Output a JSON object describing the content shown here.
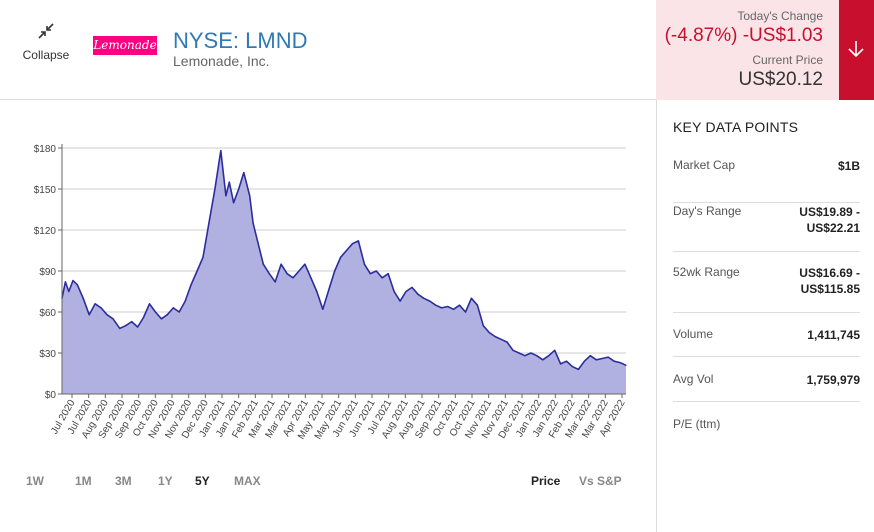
{
  "header": {
    "collapse_label": "Collapse",
    "logo_text": "Lemonade",
    "ticker": "NYSE: LMND",
    "company": "Lemonade, Inc.",
    "todays_change_label": "Today's Change",
    "todays_change_value": "(-4.87%) -US$1.03",
    "current_price_label": "Current Price",
    "current_price_value": "US$20.12",
    "arrow_icon": "arrow-down-icon",
    "colors": {
      "negative": "#c8102e",
      "negative_bg": "#fbe4e7",
      "ticker": "#2e7ab5",
      "logo": "#ff0083"
    }
  },
  "key_data": {
    "title": "KEY DATA POINTS",
    "rows": [
      {
        "label": "Market Cap",
        "value": "$1B"
      },
      {
        "label": "Day's Range",
        "value_line1": "US$19.89 -",
        "value_line2": "US$22.21"
      },
      {
        "label": "52wk Range",
        "value_line1": "US$16.69 -",
        "value_line2": "US$115.85"
      },
      {
        "label": "Volume",
        "value": "1,411,745"
      },
      {
        "label": "Avg Vol",
        "value": "1,759,979"
      },
      {
        "label": "P/E (ttm)",
        "value": ""
      }
    ]
  },
  "range_buttons": [
    {
      "label": "1W",
      "active": false
    },
    {
      "label": "1M",
      "active": false
    },
    {
      "label": "3M",
      "active": false
    },
    {
      "label": "1Y",
      "active": false
    },
    {
      "label": "5Y",
      "active": true
    },
    {
      "label": "MAX",
      "active": false
    }
  ],
  "view_toggle": {
    "price": "Price",
    "vs_sp": "Vs S&P",
    "active": "price"
  },
  "chart_data": {
    "type": "area",
    "title": "",
    "xlabel": "",
    "ylabel": "",
    "ylim": [
      0,
      180
    ],
    "yticks": [
      0,
      30,
      60,
      90,
      120,
      150,
      180
    ],
    "ytick_labels": [
      "$0",
      "$30",
      "$60",
      "$90",
      "$120",
      "$150",
      "$180"
    ],
    "xtick_labels": [
      "Jul 2020",
      "Jul 2020",
      "Aug 2020",
      "Sep 2020",
      "Sep 2020",
      "Oct 2020",
      "Nov 2020",
      "Nov 2020",
      "Dec 2020",
      "Jan 2021",
      "Jan 2021",
      "Feb 2021",
      "Mar 2021",
      "Mar 2021",
      "Apr 2021",
      "May 2021",
      "May 2021",
      "Jun 2021",
      "Jun 2021",
      "Jul 2021",
      "Aug 2021",
      "Aug 2021",
      "Sep 2021",
      "Oct 2021",
      "Oct 2021",
      "Nov 2021",
      "Nov 2021",
      "Dec 2021",
      "Jan 2022",
      "Jan 2022",
      "Feb 2022",
      "Mar 2022",
      "Mar 2022",
      "Apr 2022"
    ],
    "grid": true,
    "colors": {
      "line": "#2b2d9e",
      "fill": "#b1b1e1",
      "grid": "#cccccc"
    },
    "series": [
      {
        "x": [
          "2020-07-02",
          "2020-07-06",
          "2020-07-10",
          "2020-07-15",
          "2020-07-20",
          "2020-07-27",
          "2020-08-03",
          "2020-08-10",
          "2020-08-17",
          "2020-08-24",
          "2020-08-31",
          "2020-09-08",
          "2020-09-15",
          "2020-09-22",
          "2020-09-29",
          "2020-10-06",
          "2020-10-13",
          "2020-10-20",
          "2020-10-27",
          "2020-11-03",
          "2020-11-10",
          "2020-11-17",
          "2020-11-24",
          "2020-12-01",
          "2020-12-08",
          "2020-12-15",
          "2020-12-22",
          "2020-12-29",
          "2021-01-05",
          "2021-01-11",
          "2021-01-15",
          "2021-01-20",
          "2021-01-26",
          "2021-02-01",
          "2021-02-08",
          "2021-02-12",
          "2021-02-18",
          "2021-02-24",
          "2021-03-03",
          "2021-03-10",
          "2021-03-17",
          "2021-03-24",
          "2021-03-31",
          "2021-04-07",
          "2021-04-14",
          "2021-04-21",
          "2021-04-28",
          "2021-05-05",
          "2021-05-12",
          "2021-05-19",
          "2021-05-26",
          "2021-06-02",
          "2021-06-09",
          "2021-06-16",
          "2021-06-23",
          "2021-06-30",
          "2021-07-07",
          "2021-07-14",
          "2021-07-21",
          "2021-07-28",
          "2021-08-04",
          "2021-08-11",
          "2021-08-18",
          "2021-08-25",
          "2021-09-01",
          "2021-09-08",
          "2021-09-15",
          "2021-09-22",
          "2021-09-29",
          "2021-10-06",
          "2021-10-13",
          "2021-10-20",
          "2021-10-27",
          "2021-11-03",
          "2021-11-10",
          "2021-11-17",
          "2021-11-24",
          "2021-12-01",
          "2021-12-08",
          "2021-12-15",
          "2021-12-22",
          "2021-12-29",
          "2022-01-05",
          "2022-01-12",
          "2022-01-19",
          "2022-01-26",
          "2022-02-02",
          "2022-02-09",
          "2022-02-16",
          "2022-02-23",
          "2022-03-02",
          "2022-03-09",
          "2022-03-16",
          "2022-03-23",
          "2022-03-30",
          "2022-04-06",
          "2022-04-13",
          "2022-04-20",
          "2022-04-27"
        ],
        "values": [
          70,
          82,
          75,
          83,
          80,
          70,
          58,
          66,
          63,
          58,
          55,
          48,
          50,
          53,
          49,
          56,
          66,
          60,
          55,
          58,
          63,
          60,
          68,
          80,
          90,
          100,
          125,
          150,
          178,
          145,
          155,
          140,
          150,
          162,
          145,
          125,
          110,
          95,
          88,
          82,
          95,
          88,
          85,
          90,
          95,
          85,
          75,
          62,
          76,
          90,
          100,
          105,
          110,
          112,
          95,
          88,
          90,
          85,
          88,
          75,
          68,
          75,
          78,
          73,
          70,
          68,
          65,
          63,
          64,
          62,
          65,
          60,
          70,
          65,
          50,
          45,
          42,
          40,
          38,
          32,
          30,
          28,
          30,
          28,
          25,
          28,
          32,
          22,
          24,
          20,
          18,
          24,
          28,
          25,
          26,
          27,
          24,
          23,
          21
        ]
      }
    ]
  }
}
